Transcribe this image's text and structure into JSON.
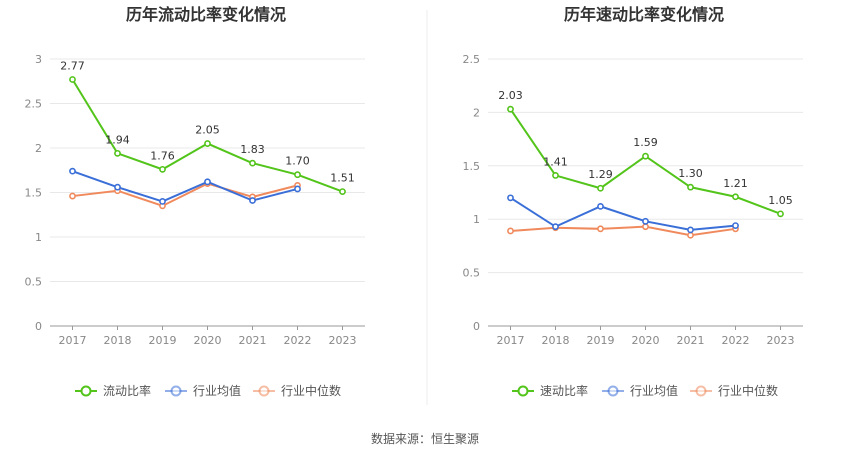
{
  "chart_data": [
    {
      "type": "line",
      "title": "历年流动比率变化情况",
      "categories": [
        "2017",
        "2018",
        "2019",
        "2020",
        "2021",
        "2022",
        "2023"
      ],
      "ylim": [
        0,
        3
      ],
      "yticks": [
        "0",
        "0.5",
        "1",
        "1.5",
        "2",
        "2.5",
        "3"
      ],
      "grid": true,
      "legend_position": "bottom",
      "series": [
        {
          "name": "流动比率",
          "color": "#52c41a",
          "values": [
            2.77,
            1.94,
            1.76,
            2.05,
            1.83,
            1.7,
            1.51
          ],
          "labels": [
            "2.77",
            "1.94",
            "1.76",
            "2.05",
            "1.83",
            "1.70",
            "1.51"
          ]
        },
        {
          "name": "行业均值",
          "color": "#3b6fd8",
          "values": [
            1.74,
            1.56,
            1.4,
            1.62,
            1.41,
            1.54,
            null
          ]
        },
        {
          "name": "行业中位数",
          "color": "#f08a5d",
          "values": [
            1.46,
            1.52,
            1.35,
            1.6,
            1.45,
            1.58,
            null
          ]
        }
      ]
    },
    {
      "type": "line",
      "title": "历年速动比率变化情况",
      "categories": [
        "2017",
        "2018",
        "2019",
        "2020",
        "2021",
        "2022",
        "2023"
      ],
      "ylim": [
        0,
        2.5
      ],
      "yticks": [
        "0",
        "0.5",
        "1",
        "1.5",
        "2",
        "2.5"
      ],
      "grid": true,
      "legend_position": "bottom",
      "series": [
        {
          "name": "速动比率",
          "color": "#52c41a",
          "values": [
            2.03,
            1.41,
            1.29,
            1.59,
            1.3,
            1.21,
            1.05
          ],
          "labels": [
            "2.03",
            "1.41",
            "1.29",
            "1.59",
            "1.30",
            "1.21",
            "1.05"
          ]
        },
        {
          "name": "行业均值",
          "color": "#3b6fd8",
          "values": [
            1.2,
            0.93,
            1.12,
            0.98,
            0.9,
            0.94,
            null
          ]
        },
        {
          "name": "行业中位数",
          "color": "#f08a5d",
          "values": [
            0.89,
            0.92,
            0.91,
            0.93,
            0.85,
            0.91,
            null
          ]
        }
      ]
    }
  ],
  "footer": {
    "source": "数据来源：恒生聚源"
  }
}
